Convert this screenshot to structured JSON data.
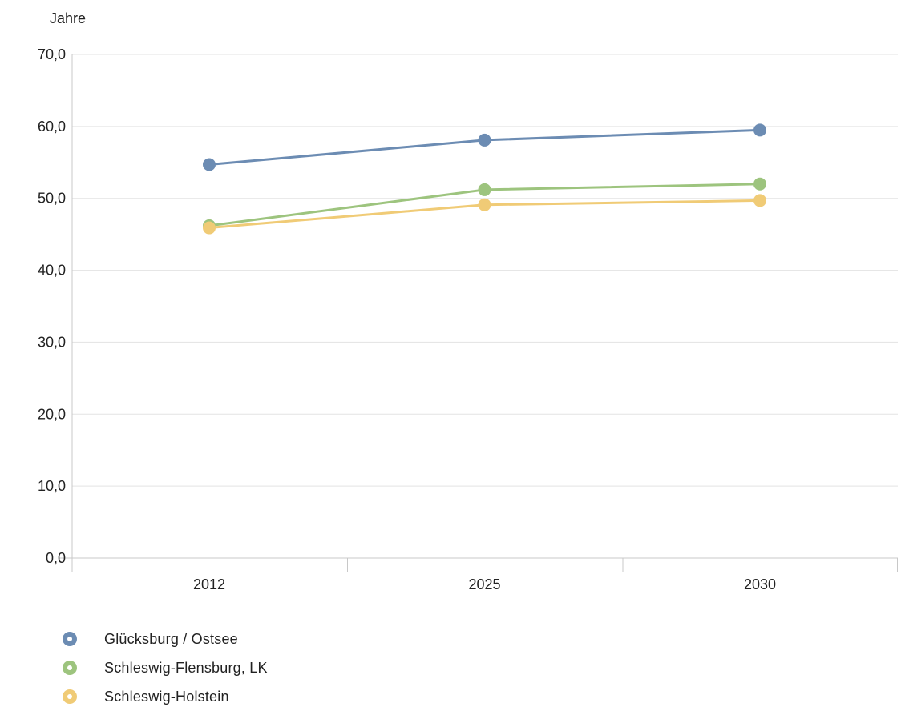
{
  "chart_data": {
    "type": "line",
    "ylabel": "Jahre",
    "ylim": [
      0,
      70
    ],
    "yticks": [
      "0,0",
      "10,0",
      "20,0",
      "30,0",
      "40,0",
      "50,0",
      "60,0",
      "70,0"
    ],
    "categories": [
      "2012",
      "2025",
      "2030"
    ],
    "grid": true,
    "legend_position": "bottom-left",
    "series": [
      {
        "name": "Glücksburg / Ostsee",
        "color": "#6c8cb3",
        "values": [
          54.7,
          58.1,
          59.5
        ]
      },
      {
        "name": "Schleswig-Flensburg, LK",
        "color": "#9dc47e",
        "values": [
          46.2,
          51.2,
          52.0
        ]
      },
      {
        "name": "Schleswig-Holstein",
        "color": "#f0cb76",
        "values": [
          45.9,
          49.1,
          49.7
        ]
      }
    ]
  }
}
